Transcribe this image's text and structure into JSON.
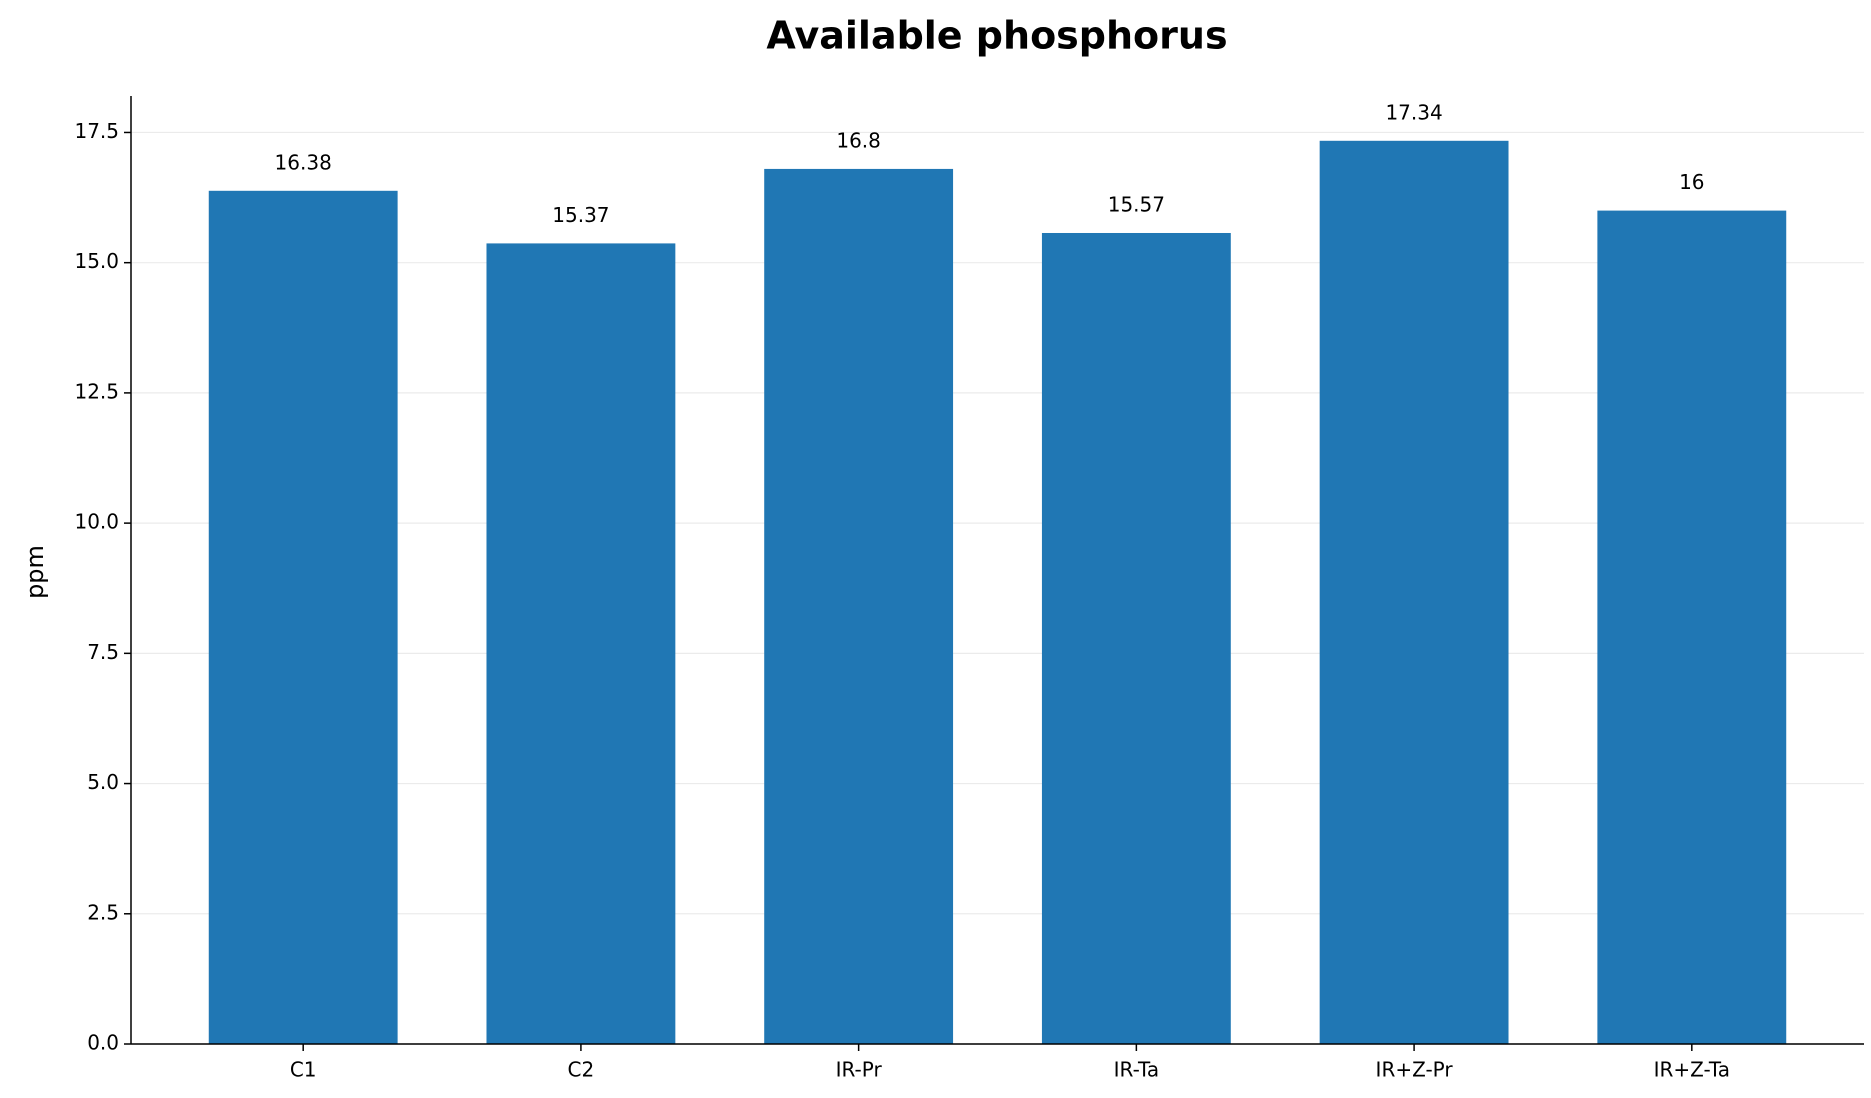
{
  "chart_data": {
    "type": "bar",
    "title": "Available phosphorus",
    "y_label": "ppm",
    "categories": [
      "C1",
      "C2",
      "IR-Pr",
      "IR-Ta",
      "IR+Z-Pr",
      "IR+Z-Ta"
    ],
    "values": [
      16.38,
      15.37,
      16.8,
      15.57,
      17.34,
      16
    ],
    "color": "#2077b4",
    "ylim": [
      0,
      18.2
    ],
    "yticks": [
      {
        "value": 0,
        "label": "0.0"
      },
      2.5,
      {
        "value": 5,
        "label": "5.0"
      },
      7.5,
      {
        "value": 10,
        "label": "10.0"
      },
      12.5,
      {
        "value": 15,
        "label": "15.0"
      },
      17.5
    ],
    "grid": true
  }
}
